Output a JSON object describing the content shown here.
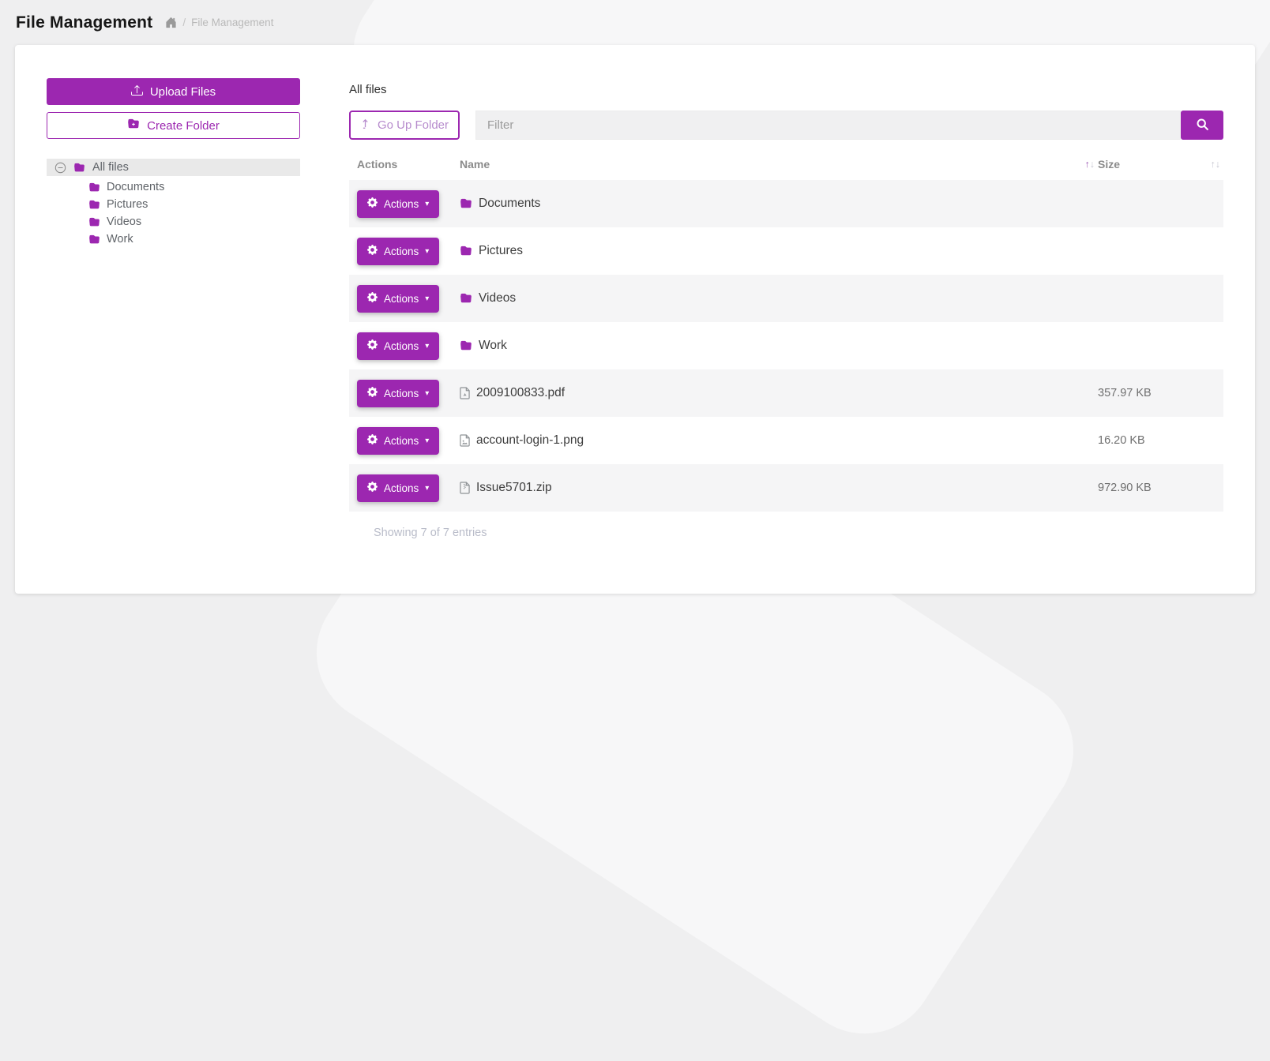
{
  "page": {
    "title": "File Management"
  },
  "breadcrumb": {
    "separator": "/",
    "current": "File Management"
  },
  "icons": {
    "caret_down": "▾",
    "sort_asc": "↑",
    "sort_desc": "↓"
  },
  "colors": {
    "accent": "#9c27b0",
    "stripe": "#f5f5f6"
  },
  "sidebar": {
    "upload_button": "Upload Files",
    "create_folder_button": "Create Folder",
    "tree": {
      "root": {
        "label": "All files",
        "selected": true
      },
      "children": [
        {
          "label": "Documents"
        },
        {
          "label": "Pictures"
        },
        {
          "label": "Videos"
        },
        {
          "label": "Work"
        }
      ]
    }
  },
  "main": {
    "heading": "All files",
    "go_up_button": "Go Up Folder",
    "filter_placeholder": "Filter",
    "filter_value": "",
    "table": {
      "columns": {
        "actions": "Actions",
        "name": "Name",
        "size": "Size"
      },
      "actions_button_label": "Actions",
      "rows": [
        {
          "type": "folder",
          "name": "Documents",
          "size": ""
        },
        {
          "type": "folder",
          "name": "Pictures",
          "size": ""
        },
        {
          "type": "folder",
          "name": "Videos",
          "size": ""
        },
        {
          "type": "folder",
          "name": "Work",
          "size": ""
        },
        {
          "type": "pdf",
          "name": "2009100833.pdf",
          "size": "357.97 KB"
        },
        {
          "type": "image",
          "name": "account-login-1.png",
          "size": "16.20 KB"
        },
        {
          "type": "zip",
          "name": "Issue5701.zip",
          "size": "972.90 KB"
        }
      ]
    },
    "footer": "Showing 7 of 7 entries"
  }
}
